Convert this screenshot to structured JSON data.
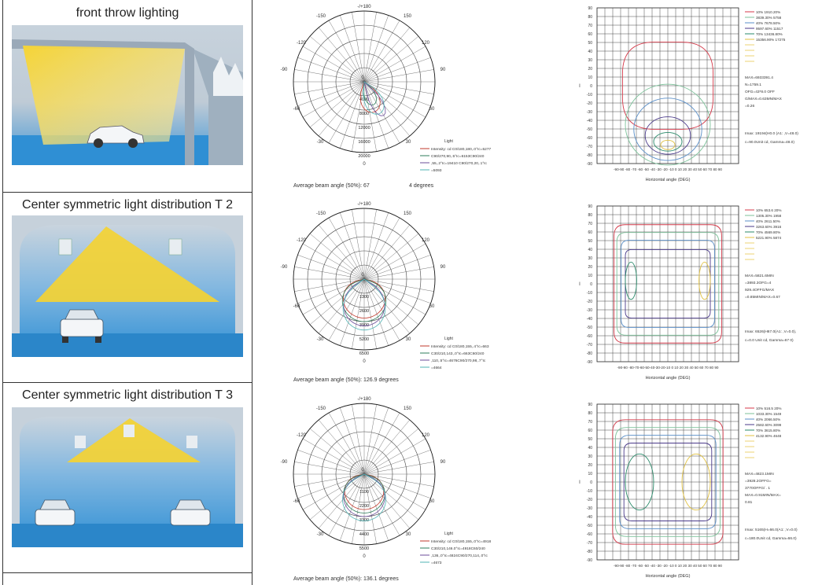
{
  "panels": [
    {
      "scene_title": "front throw lighting",
      "scene": {
        "type": "front-throw",
        "cars": 1
      },
      "polar": {
        "labels_angle": [
          "-/+180",
          "150",
          "-150",
          "120",
          "-120",
          "90",
          "-90",
          "60",
          "-60",
          "30",
          "-30",
          "0"
        ],
        "labels_radius": [
          "4000",
          "8000",
          "12000",
          "16000",
          "20000"
        ],
        "center_label": "0",
        "legend_title": "Light",
        "legend": [
          {
            "text": "Intensity: cd C0/180,180,.0°Ic=5277",
            "color": "#c0392b"
          },
          {
            "text": "C90/270,90,.5°Ic=6153C90/240",
            "color": "#2e7d5b"
          },
          {
            "text": ",55,.2°Ic=19410 C90/270,20,.1°Ic",
            "color": "#6b4c9a"
          },
          {
            "text": "=5093",
            "color": "#4fb3b3"
          }
        ],
        "caption": "Average beam angle (50%): 67",
        "caption2": "4 degrees"
      },
      "iso": {
        "y_ticks": [
          "90",
          "80",
          "70",
          "60",
          "50",
          "40",
          "30",
          "20",
          "10",
          "0",
          "-10",
          "-20",
          "-30",
          "-40",
          "-50",
          "-60",
          "-70",
          "-80",
          "-90"
        ],
        "x_ticks": "-90-90 -80 -70 -60 -50 -40 -30 -20 -10 0 10 20 30 40 50 60 70 80 90",
        "xlabel": "Horizontal angle (DEG)",
        "ylabel": "I",
        "legend": [
          {
            "text": "10% 1910.20%",
            "color": "#d43a4a"
          },
          {
            "text": "3839.30% 5758",
            "color": "#7cc29a"
          },
          {
            "text": "40% 7678.50%",
            "color": "#5a8fc8"
          },
          {
            "text": "9597.60% 11517",
            "color": "#4a3a8a"
          },
          {
            "text": "70% 13436.80%",
            "color": "#2a8a6a"
          },
          {
            "text": "15356.90% 17275",
            "color": "#e0c040"
          }
        ],
        "stats": [
          "MAX=6933391.4",
          "N=1759.1",
          "OFG=43*8.0 OFF",
          "G/MAX=0.63MN/MAX",
          "=0.26"
        ],
        "imax": "Imax: 19194(H0.0 (A1: ,V=48.0)",
        "imax2": "c=90.0Unit cd, Gamma=48.0)"
      }
    },
    {
      "scene_title": "Center symmetric light distribution T 2",
      "scene": {
        "type": "tunnel",
        "cars": 1
      },
      "polar": {
        "labels_angle": [
          "-/+180",
          "150",
          "-150",
          "120",
          "-120",
          "90",
          "-90",
          "60",
          "-60",
          "30",
          "-30",
          "0"
        ],
        "labels_radius": [
          "1300",
          "2600",
          "3900",
          "5200",
          "6500"
        ],
        "center_label": "0",
        "legend_title": "Light",
        "legend": [
          {
            "text": "Intensity: cd C0/180,155,.4°Ic=663",
            "color": "#c0392b"
          },
          {
            "text": "C30/210,143,.0°Ic=663C60/240",
            "color": "#2e7d5b"
          },
          {
            "text": ",110,.5°Ic=4676C90/270,98,.7°Ic",
            "color": "#6b4c9a"
          },
          {
            "text": "=4664",
            "color": "#4fb3b3"
          }
        ],
        "caption": "Average beam angle (50%): 126.9 degrees",
        "caption2": ""
      },
      "iso": {
        "y_ticks": [
          "90",
          "80",
          "70",
          "60",
          "50",
          "40",
          "30",
          "20",
          "10",
          "0",
          "-10",
          "-20",
          "-30",
          "-40",
          "-50",
          "-60",
          "-70",
          "-80",
          "-90"
        ],
        "x_ticks": "-90-90 -80-70-60-50-40-30-20-10 0 10 20 30 40 50 60 70 80 90",
        "xlabel": "Horizontal angle (DEG)",
        "ylabel": "I",
        "legend": [
          {
            "text": "10% 653.6 20%",
            "color": "#d43a4a"
          },
          {
            "text": "1305.30% 1958",
            "color": "#7cc29a"
          },
          {
            "text": "40% 2611.50%",
            "color": "#5a8fc8"
          },
          {
            "text": "3263.60% 3916",
            "color": "#4a3a8a"
          },
          {
            "text": "70% 4569.80%",
            "color": "#2a8a6a"
          },
          {
            "text": "5221.90% 5874",
            "color": "#e0c040"
          }
        ],
        "stats": [
          "MAX=5821.6MIN",
          "=3893.3OFG=4",
          "929.4OFFG/MAX",
          "=0.85MIN/MAX=0.67"
        ],
        "imax": "Imax: 6526(H67.0(A1: ,V=0.0),",
        "imax2": "c=0.0 Unit cd, Gamma=67    0)"
      }
    },
    {
      "scene_title": "Center symmetric light distribution T 3",
      "scene": {
        "type": "tunnel",
        "cars": 2
      },
      "polar": {
        "labels_angle": [
          "-/+180",
          "150",
          "-150",
          "120",
          "-120",
          "90",
          "-90",
          "60",
          "-60",
          "30",
          "-30",
          "0"
        ],
        "labels_radius": [
          "1100",
          "2200",
          "3300",
          "4400",
          "5500"
        ],
        "center_label": "0",
        "legend_title": "Light",
        "legend": [
          {
            "text": "Intensity: cd C0/180,155,.0°Ic=4918",
            "color": "#c0392b"
          },
          {
            "text": "C30/210,146.0°Ic=4918C60/240",
            "color": "#2e7d5b"
          },
          {
            "text": ",136,.0°Ic=4824C90/270,114,.0°Ic",
            "color": "#6b4c9a"
          },
          {
            "text": "=4673",
            "color": "#4fb3b3"
          }
        ],
        "caption": "Average beam angle (50%): 136.1 degrees",
        "caption2": ""
      },
      "iso": {
        "y_ticks": [
          "90",
          "80",
          "70",
          "60",
          "50",
          "40",
          "30",
          "20",
          "10",
          "0",
          "-10",
          "-20",
          "-30",
          "-40",
          "-50",
          "-60",
          "-70",
          "-80",
          "-90"
        ],
        "x_ticks": "-90-90 -80 -70 -60 -50 -40 -30 -20 -10 0 10 20 30 40 50 60 70 80 90",
        "xlabel": "Horizontal angle (DEG)",
        "ylabel": "I",
        "legend": [
          {
            "text": "10% 516.5 20%",
            "color": "#d43a4a"
          },
          {
            "text": "1033.30% 1549",
            "color": "#7cc29a"
          },
          {
            "text": "40% 2066.50%",
            "color": "#5a8fc8"
          },
          {
            "text": "2582.60% 3099",
            "color": "#4a3a8a"
          },
          {
            "text": "70% 3615.80%",
            "color": "#2a8a6a"
          },
          {
            "text": "4132.90% 4648",
            "color": "#e0c040"
          }
        ],
        "stats": [
          "MAX=4823.1MIN",
          "=3928.2OFFG=",
          "3770OFFG/ . 1",
          "MAX=0.91MIN/MAX=",
          "0.81"
        ],
        "imax": "Imax: 5165(H=66.0(A1: ,V=0.0)",
        "imax2": "c=180.0Unit cd, Gamma=66.0)"
      }
    }
  ],
  "chart_data": [
    {
      "type": "polar",
      "title": "",
      "caption": "Average beam angle (50%): 67",
      "radial_ticks": [
        4000,
        8000,
        12000,
        16000,
        20000
      ],
      "series": [
        {
          "name": "C0/180",
          "peak": 5277
        },
        {
          "name": "C90/270",
          "peak": 6153
        },
        {
          "name": "C90/270",
          "peak": 19410
        }
      ]
    },
    {
      "type": "polar",
      "title": "",
      "caption": "Average beam angle (50%): 126.9 degrees",
      "radial_ticks": [
        1300,
        2600,
        3900,
        5200,
        6500
      ],
      "series": [
        {
          "name": "C0/180",
          "peak": 663
        },
        {
          "name": "C30/210",
          "peak": 663
        },
        {
          "name": "C60/240",
          "peak": 4676
        },
        {
          "name": "C90/270",
          "peak": 4664
        }
      ]
    },
    {
      "type": "polar",
      "title": "",
      "caption": "Average beam angle (50%): 136.1 degrees",
      "radial_ticks": [
        1100,
        2200,
        3300,
        4400,
        5500
      ],
      "series": [
        {
          "name": "C0/180",
          "peak": 4918
        },
        {
          "name": "C30/210",
          "peak": 4918
        },
        {
          "name": "C60/240",
          "peak": 4824
        },
        {
          "name": "C90/270",
          "peak": 4673
        }
      ]
    },
    {
      "type": "heatmap",
      "xlabel": "Horizontal angle (DEG)",
      "xlim": [
        -90,
        90
      ],
      "ylim": [
        -90,
        90
      ]
    },
    {
      "type": "heatmap",
      "xlabel": "Horizontal angle (DEG)",
      "xlim": [
        -90,
        90
      ],
      "ylim": [
        -90,
        90
      ]
    },
    {
      "type": "heatmap",
      "xlabel": "Horizontal angle (DEG)",
      "xlim": [
        -90,
        90
      ],
      "ylim": [
        -90,
        90
      ]
    }
  ]
}
